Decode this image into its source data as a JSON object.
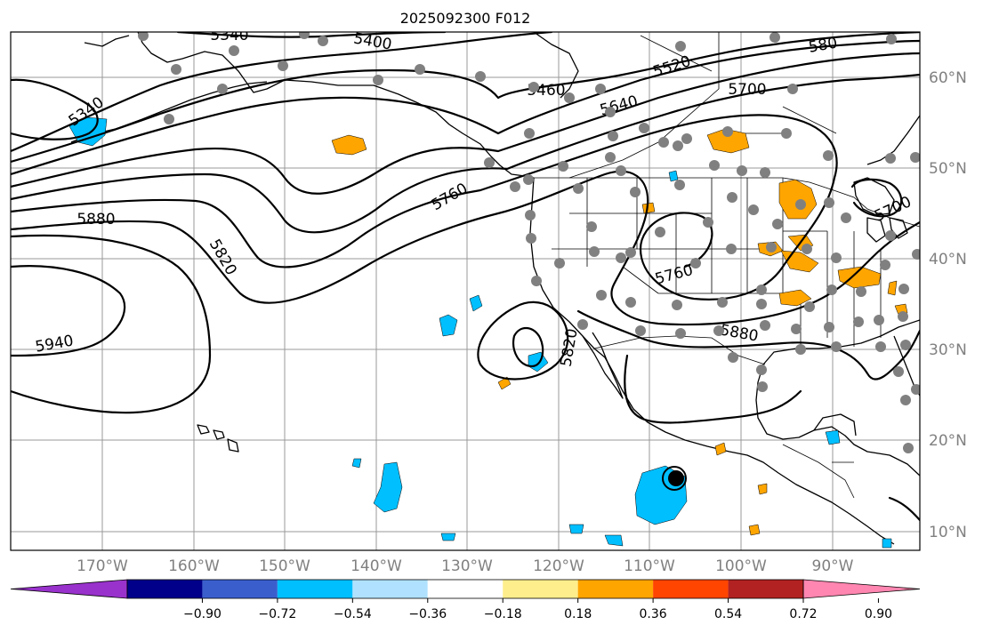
{
  "title": "2025092300 F012",
  "lon_labels": [
    "170°W",
    "160°W",
    "150°W",
    "140°W",
    "130°W",
    "120°W",
    "110°W",
    "100°W",
    "90°W"
  ],
  "lat_labels": [
    "60°N",
    "50°N",
    "40°N",
    "30°N",
    "20°N",
    "10°N"
  ],
  "contour_labels": [
    "5340",
    "5340",
    "5400",
    "5460",
    "5520",
    "580",
    "5640",
    "5700",
    "5760",
    "5760",
    "5820",
    "5820",
    "5880",
    "5880",
    "5940",
    "5700"
  ],
  "colorbar": {
    "ticks": [
      "−0.90",
      "−0.72",
      "−0.54",
      "−0.36",
      "−0.18",
      "0.18",
      "0.36",
      "0.54",
      "0.72",
      "0.90"
    ],
    "colors": [
      "#9932cc",
      "#00008b",
      "#3a5fcd",
      "#00bfff",
      "#b0e2ff",
      "#ffffff",
      "#ffee8c",
      "#ffa500",
      "#ff4500",
      "#b22222",
      "#ff86b0"
    ]
  },
  "colors": {
    "positive_fill": "#ffa500",
    "negative_fill": "#00bfff",
    "station_dot": "#808080",
    "grid": "#999999"
  }
}
